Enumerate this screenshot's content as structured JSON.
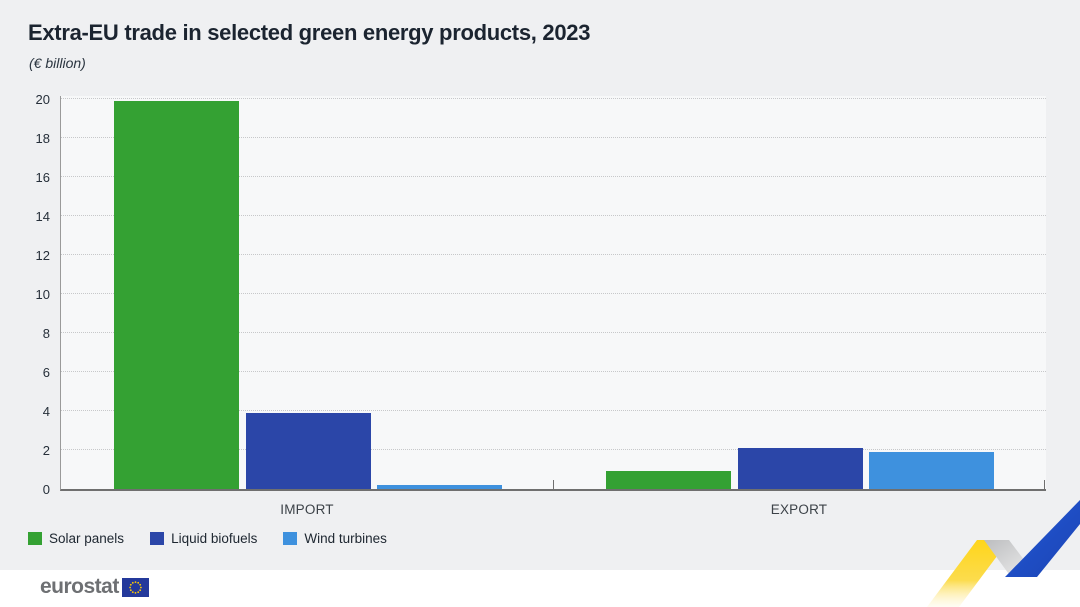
{
  "chart_data": {
    "type": "bar",
    "title": "Extra-EU trade in selected green energy products, 2023",
    "subtitle": "(€ billion)",
    "categories": [
      "IMPORT",
      "EXPORT"
    ],
    "series": [
      {
        "name": "Solar panels",
        "color": "#34a133",
        "values": [
          19.9,
          0.9
        ]
      },
      {
        "name": "Liquid biofuels",
        "color": "#2b46a8",
        "values": [
          3.9,
          2.1
        ]
      },
      {
        "name": "Wind turbines",
        "color": "#3e91de",
        "values": [
          0.2,
          1.9
        ]
      }
    ],
    "xlabel": "",
    "ylabel": "",
    "ylim": [
      0,
      20
    ],
    "ytick_step": 2,
    "grid": "horizontal-dotted",
    "legend_position": "bottom-left"
  },
  "footer": {
    "brand": "eurostat"
  },
  "colors": {
    "background": "#eff0f2",
    "plot_background": "#f7f8f9",
    "gridline": "#c7c8ca",
    "ribbon_blue": "#1e4fc9",
    "ribbon_yellow": "#fed51a",
    "eu_flag_blue": "#24399b",
    "eu_star_yellow": "#ffcc00"
  }
}
